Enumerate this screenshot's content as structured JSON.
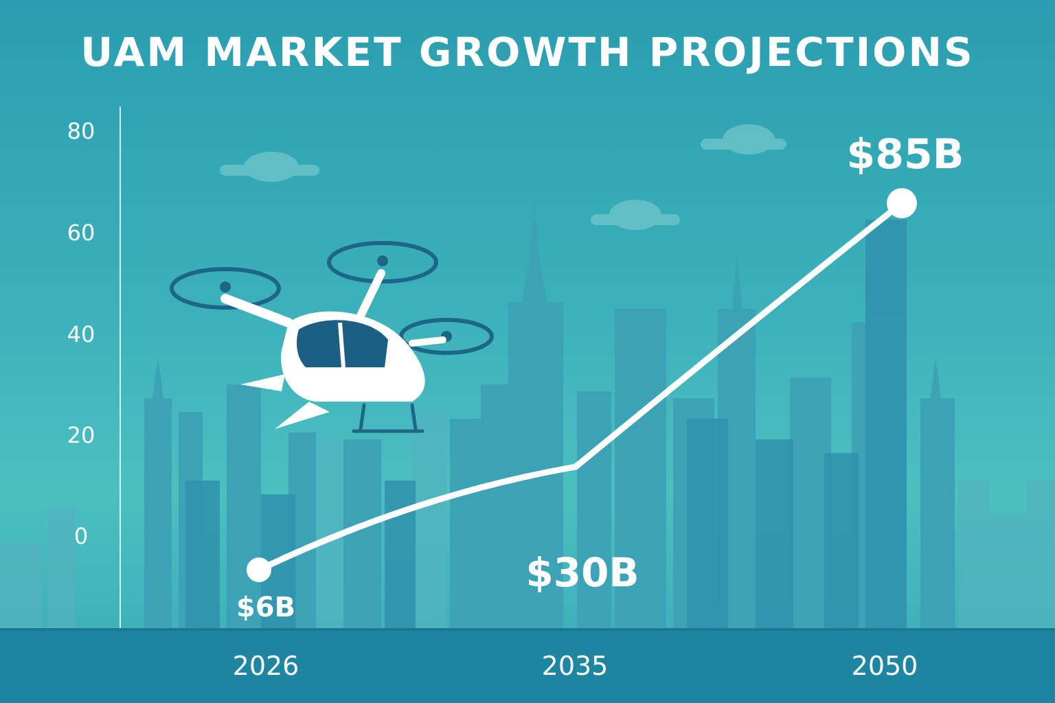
{
  "chart_data": {
    "type": "line",
    "title": "UAM MARKET GROWTH PROJECTIONS",
    "categories": [
      "2026",
      "2035",
      "2050"
    ],
    "series": [
      {
        "values": [
          6,
          30,
          85
        ],
        "labels": [
          "$6B",
          "$30B",
          "$85B"
        ]
      }
    ],
    "yticks": [
      "80",
      "60",
      "40",
      "20",
      "0"
    ],
    "grid": false,
    "colors": {
      "line": "#ffffff",
      "background": "#3aafb9",
      "axis_band": "#1f86a1"
    }
  }
}
